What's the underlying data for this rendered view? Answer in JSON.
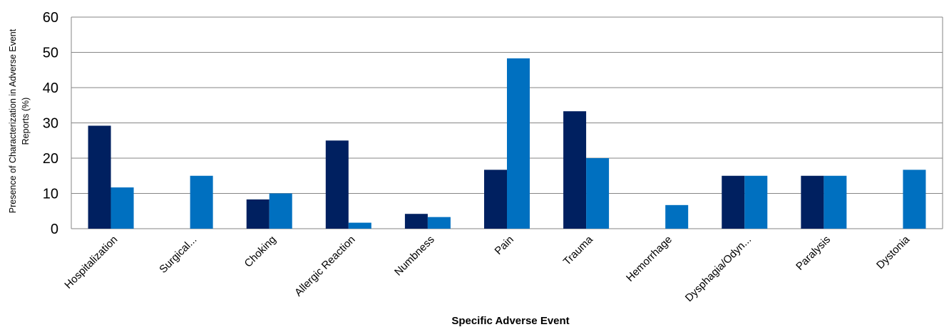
{
  "chart_data": {
    "type": "bar",
    "categories": [
      "Hospitalization",
      "Surgical...",
      "Choking",
      "Allergic Reaction",
      "Numbness",
      "Pain",
      "Trauma",
      "Hemorrhage",
      "Dysphagia/Odyn...",
      "Paralysis",
      "Dystonia"
    ],
    "series": [
      {
        "values": [
          29.2,
          0,
          8.3,
          25.0,
          4.2,
          16.7,
          33.3,
          0,
          15.0,
          15.0,
          0
        ],
        "color": "#002060"
      },
      {
        "values": [
          11.7,
          15.0,
          10.0,
          1.7,
          3.3,
          48.3,
          20.0,
          6.7,
          15.0,
          15.0,
          16.7
        ],
        "color": "#0070C0"
      }
    ],
    "title": "",
    "xlabel": "Specific Adverse Event",
    "ylabel_lines": [
      "Presence of Characterization in Adverse Event",
      "Reports (%)"
    ],
    "ylim": [
      0,
      60
    ],
    "yticks": [
      0,
      10,
      20,
      30,
      40,
      50,
      60
    ],
    "grid": true,
    "legend": "none"
  }
}
